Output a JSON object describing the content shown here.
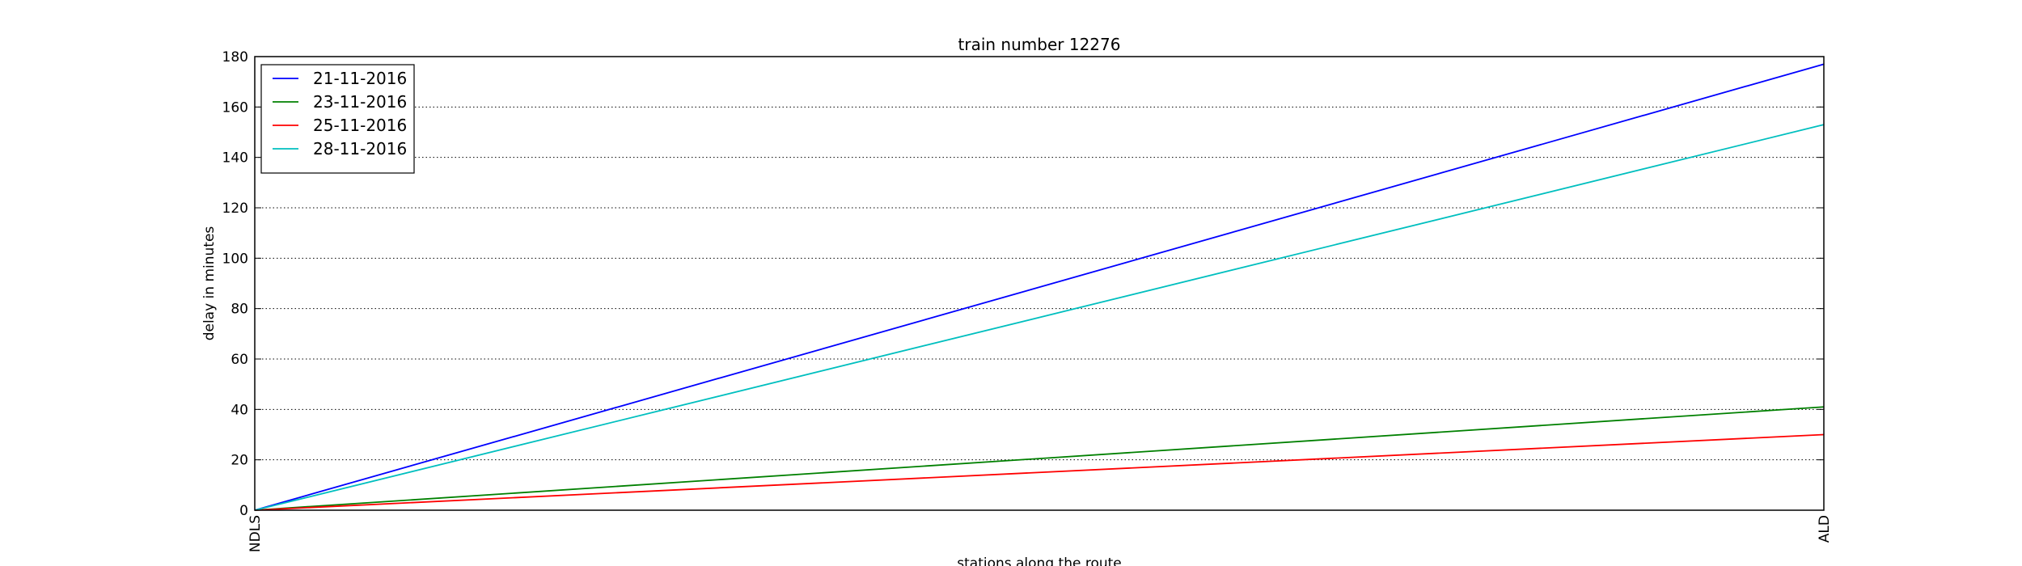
{
  "chart_data": {
    "type": "line",
    "title": "train number 12276",
    "xlabel": "stations along the route",
    "ylabel": "delay in minutes",
    "categories": [
      "NDLS",
      "ALD"
    ],
    "ylim": [
      0,
      180
    ],
    "yticks": [
      0,
      20,
      40,
      60,
      80,
      100,
      120,
      140,
      160,
      180
    ],
    "grid": "horizontal dotted",
    "legend": "top-left",
    "series": [
      {
        "name": "21-11-2016",
        "color": "#0000ff",
        "values": [
          0,
          177
        ]
      },
      {
        "name": "23-11-2016",
        "color": "#008000",
        "values": [
          0,
          41
        ]
      },
      {
        "name": "25-11-2016",
        "color": "#ff0000",
        "values": [
          0,
          30
        ]
      },
      {
        "name": "28-11-2016",
        "color": "#00bfbf",
        "values": [
          0,
          153
        ]
      }
    ]
  }
}
